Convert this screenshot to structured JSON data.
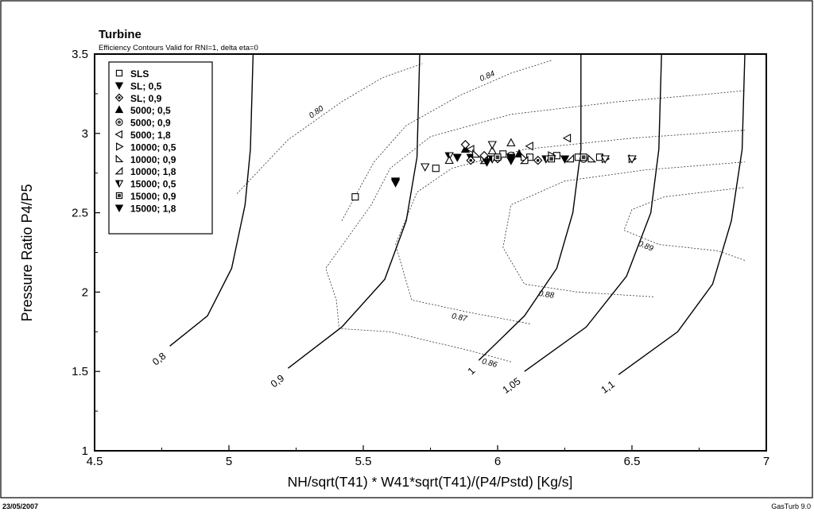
{
  "chart_data": {
    "type": "scatter",
    "title": "Turbine",
    "subtitle": "Efficiency Contours Valid for RNI=1, delta eta=0",
    "xlabel": "NH/sqrt(T41) * W41*sqrt(T41)/(P4/Pstd) [Kg/s]",
    "ylabel": "Pressure Ratio P4/P5",
    "xlim": [
      4.5,
      7
    ],
    "ylim": [
      1,
      3.5
    ],
    "xticks": [
      "4.5",
      "5",
      "5.5",
      "6",
      "6.5",
      "7"
    ],
    "yticks": [
      "1",
      "1.5",
      "2",
      "2.5",
      "3",
      "3.5"
    ],
    "grid": false,
    "legend_position": "top-left",
    "footer_left": "23/05/2007",
    "footer_right": "GasTurb 9.0",
    "speed_lines": [
      {
        "label": "0,8",
        "points": [
          [
            4.78,
            1.66
          ],
          [
            4.92,
            1.85
          ],
          [
            5.01,
            2.15
          ],
          [
            5.06,
            2.55
          ],
          [
            5.08,
            2.9
          ],
          [
            5.09,
            3.5
          ]
        ]
      },
      {
        "label": "0,9",
        "points": [
          [
            5.22,
            1.52
          ],
          [
            5.42,
            1.78
          ],
          [
            5.58,
            2.08
          ],
          [
            5.66,
            2.45
          ],
          [
            5.7,
            2.85
          ],
          [
            5.71,
            3.5
          ]
        ]
      },
      {
        "label": "1",
        "points": [
          [
            5.93,
            1.57
          ],
          [
            6.1,
            1.85
          ],
          [
            6.22,
            2.15
          ],
          [
            6.28,
            2.5
          ],
          [
            6.31,
            2.9
          ],
          [
            6.31,
            3.5
          ]
        ]
      },
      {
        "label": "1,05",
        "points": [
          [
            6.1,
            1.5
          ],
          [
            6.33,
            1.78
          ],
          [
            6.48,
            2.1
          ],
          [
            6.57,
            2.5
          ],
          [
            6.6,
            2.9
          ],
          [
            6.61,
            3.5
          ]
        ]
      },
      {
        "label": "1,1",
        "points": [
          [
            6.45,
            1.48
          ],
          [
            6.67,
            1.75
          ],
          [
            6.8,
            2.05
          ],
          [
            6.87,
            2.45
          ],
          [
            6.91,
            2.9
          ],
          [
            6.92,
            3.5
          ]
        ]
      }
    ],
    "efficiency_contours": [
      {
        "label": "0.80",
        "points": [
          [
            5.03,
            2.62
          ],
          [
            5.22,
            2.96
          ],
          [
            5.42,
            3.2
          ],
          [
            5.57,
            3.35
          ],
          [
            5.72,
            3.44
          ]
        ]
      },
      {
        "label": "0.84",
        "points": [
          [
            5.42,
            2.45
          ],
          [
            5.54,
            2.82
          ],
          [
            5.66,
            3.05
          ],
          [
            5.86,
            3.24
          ],
          [
            6.05,
            3.38
          ],
          [
            6.2,
            3.46
          ]
        ]
      },
      {
        "label": "0.86",
        "points": [
          [
            6.05,
            1.56
          ],
          [
            5.9,
            1.63
          ],
          [
            5.6,
            1.75
          ],
          [
            5.41,
            1.77
          ],
          [
            5.4,
            1.95
          ],
          [
            5.36,
            2.15
          ],
          [
            5.53,
            2.55
          ],
          [
            5.6,
            2.78
          ],
          [
            5.75,
            2.98
          ],
          [
            6.05,
            3.12
          ],
          [
            6.45,
            3.2
          ],
          [
            6.8,
            3.25
          ],
          [
            6.92,
            3.27
          ]
        ]
      },
      {
        "label": "0.87",
        "points": [
          [
            6.12,
            1.8
          ],
          [
            5.9,
            1.87
          ],
          [
            5.68,
            1.95
          ],
          [
            5.62,
            2.3
          ],
          [
            5.7,
            2.63
          ],
          [
            5.83,
            2.78
          ],
          [
            6.1,
            2.9
          ],
          [
            6.5,
            2.97
          ],
          [
            6.92,
            3.02
          ]
        ]
      },
      {
        "label": "0.88",
        "points": [
          [
            6.58,
            1.97
          ],
          [
            6.3,
            2.0
          ],
          [
            6.1,
            2.05
          ],
          [
            6.02,
            2.28
          ],
          [
            6.05,
            2.55
          ],
          [
            6.25,
            2.7
          ],
          [
            6.55,
            2.77
          ],
          [
            6.92,
            2.82
          ]
        ]
      },
      {
        "label": "0.89",
        "points": [
          [
            6.92,
            2.2
          ],
          [
            6.82,
            2.26
          ],
          [
            6.6,
            2.3
          ],
          [
            6.47,
            2.39
          ],
          [
            6.5,
            2.52
          ],
          [
            6.62,
            2.6
          ],
          [
            6.92,
            2.66
          ]
        ]
      }
    ],
    "series": [
      {
        "name": "SLS",
        "marker": "square",
        "points": [
          [
            5.47,
            2.6
          ],
          [
            5.77,
            2.78
          ],
          [
            6.02,
            2.87
          ],
          [
            6.12,
            2.85
          ],
          [
            6.22,
            2.86
          ],
          [
            6.3,
            2.85
          ],
          [
            6.38,
            2.85
          ]
        ]
      },
      {
        "name": "SL; 0,5",
        "marker": "triangle-down-filled",
        "points": [
          [
            5.62,
            2.69
          ],
          [
            5.9,
            2.85
          ],
          [
            6.05,
            2.83
          ]
        ]
      },
      {
        "name": "SL; 0,9",
        "marker": "diamond-dot",
        "points": [
          [
            5.9,
            2.83
          ],
          [
            6.0,
            2.84
          ],
          [
            6.15,
            2.83
          ]
        ]
      },
      {
        "name": "5000; 0,5",
        "marker": "triangle-up-filled",
        "points": [
          [
            5.88,
            2.9
          ],
          [
            6.08,
            2.87
          ]
        ]
      },
      {
        "name": "5000; 0,9",
        "marker": "circle-dot",
        "points": [
          [
            5.95,
            2.84
          ],
          [
            6.05,
            2.86
          ],
          [
            6.2,
            2.85
          ],
          [
            6.32,
            2.84
          ]
        ]
      },
      {
        "name": "5000; 1,8",
        "marker": "triangle-left",
        "points": [
          [
            5.9,
            2.9
          ],
          [
            6.12,
            2.92
          ],
          [
            6.26,
            2.97
          ]
        ]
      },
      {
        "name": "10000; 0,5",
        "marker": "triangle-right",
        "points": [
          [
            6.2,
            2.86
          ],
          [
            6.4,
            2.84
          ],
          [
            6.5,
            2.84
          ]
        ]
      },
      {
        "name": "10000; 0,9",
        "marker": "triangle-se",
        "points": [
          [
            5.92,
            2.87
          ],
          [
            6.1,
            2.85
          ],
          [
            6.35,
            2.84
          ]
        ]
      },
      {
        "name": "10000; 1,8",
        "marker": "triangle-sw",
        "points": [
          [
            5.95,
            2.83
          ],
          [
            6.1,
            2.83
          ],
          [
            6.27,
            2.84
          ]
        ]
      },
      {
        "name": "15000; 0,5",
        "marker": "triangle-down-half",
        "points": [
          [
            5.82,
            2.86
          ],
          [
            5.98,
            2.84
          ],
          [
            6.18,
            2.84
          ]
        ]
      },
      {
        "name": "15000; 0,9",
        "marker": "square-filled",
        "points": [
          [
            6.0,
            2.85
          ],
          [
            6.2,
            2.84
          ],
          [
            6.32,
            2.85
          ]
        ]
      },
      {
        "name": "15000; 1,8",
        "marker": "triangle-down-filled",
        "points": [
          [
            5.62,
            2.7
          ],
          [
            5.85,
            2.85
          ],
          [
            5.96,
            2.82
          ],
          [
            6.05,
            2.85
          ],
          [
            6.25,
            2.84
          ]
        ]
      },
      {
        "name": "",
        "marker": "triangle-up",
        "points": [
          [
            5.82,
            2.83
          ],
          [
            5.98,
            2.89
          ],
          [
            6.05,
            2.94
          ]
        ]
      },
      {
        "name": "",
        "marker": "triangle-down",
        "points": [
          [
            5.73,
            2.79
          ],
          [
            5.98,
            2.93
          ],
          [
            6.4,
            2.84
          ],
          [
            6.5,
            2.84
          ]
        ]
      },
      {
        "name": "",
        "marker": "diamond",
        "points": [
          [
            5.88,
            2.93
          ],
          [
            5.95,
            2.86
          ]
        ]
      }
    ]
  }
}
